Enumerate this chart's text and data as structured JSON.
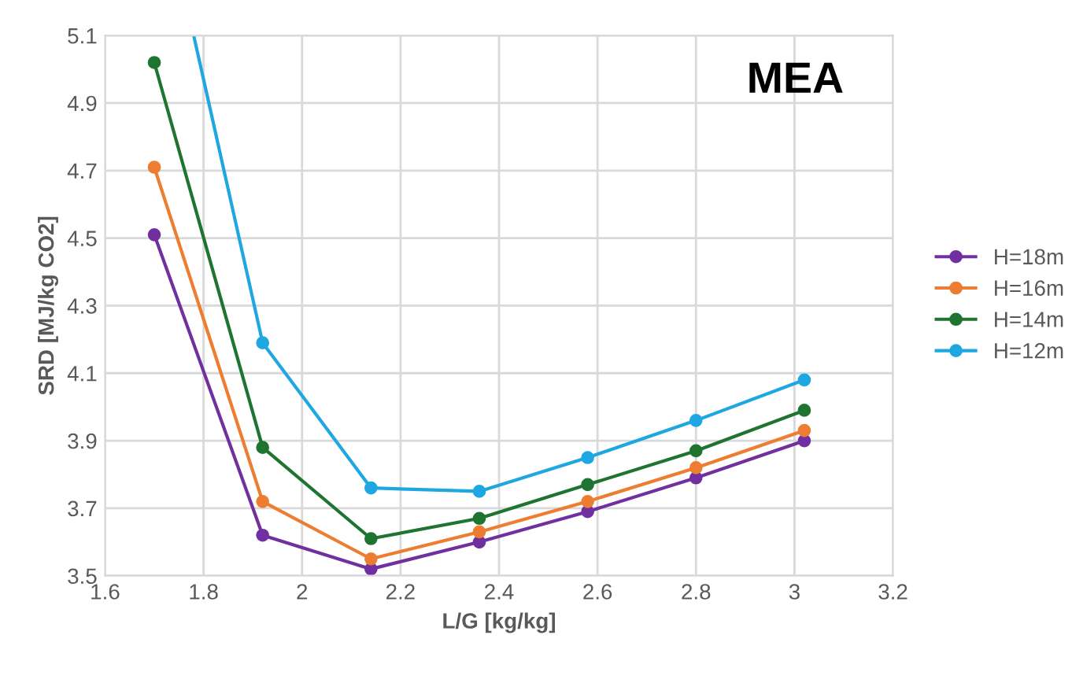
{
  "chart_data": {
    "type": "line",
    "xlabel": "L/G [kg/kg]",
    "ylabel": "SRD [MJ/kg CO2]",
    "annotations": [
      "MEA"
    ],
    "x": [
      1.7,
      1.92,
      2.14,
      2.36,
      2.58,
      2.8,
      3.02
    ],
    "series": [
      {
        "name": "H=18m",
        "color": "#7030a0",
        "values": [
          4.51,
          3.62,
          3.52,
          3.6,
          3.69,
          3.79,
          3.9
        ]
      },
      {
        "name": "H=16m",
        "color": "#ed7d31",
        "values": [
          4.71,
          3.72,
          3.55,
          3.63,
          3.72,
          3.82,
          3.93
        ]
      },
      {
        "name": "H=14m",
        "color": "#1e7430",
        "values": [
          5.02,
          3.88,
          3.61,
          3.67,
          3.77,
          3.87,
          3.99
        ]
      },
      {
        "name": "H=12m",
        "color": "#1ea7e1",
        "x": [
          1.78,
          1.92,
          2.14,
          2.36,
          2.58,
          2.8,
          3.02
        ],
        "values": [
          5.1,
          4.19,
          3.76,
          3.75,
          3.85,
          3.96,
          4.08
        ]
      }
    ],
    "xlim": [
      1.6,
      3.2
    ],
    "xticks": [
      1.6,
      1.8,
      2,
      2.2,
      2.4,
      2.6,
      2.8,
      3,
      3.2
    ],
    "ylim": [
      3.5,
      5.1
    ],
    "yticks": [
      3.5,
      3.7,
      3.9,
      4.1,
      4.3,
      4.5,
      4.7,
      4.9,
      5.1
    ],
    "grid": true,
    "legend": "right",
    "marker": "circle",
    "line_style": "solid"
  }
}
